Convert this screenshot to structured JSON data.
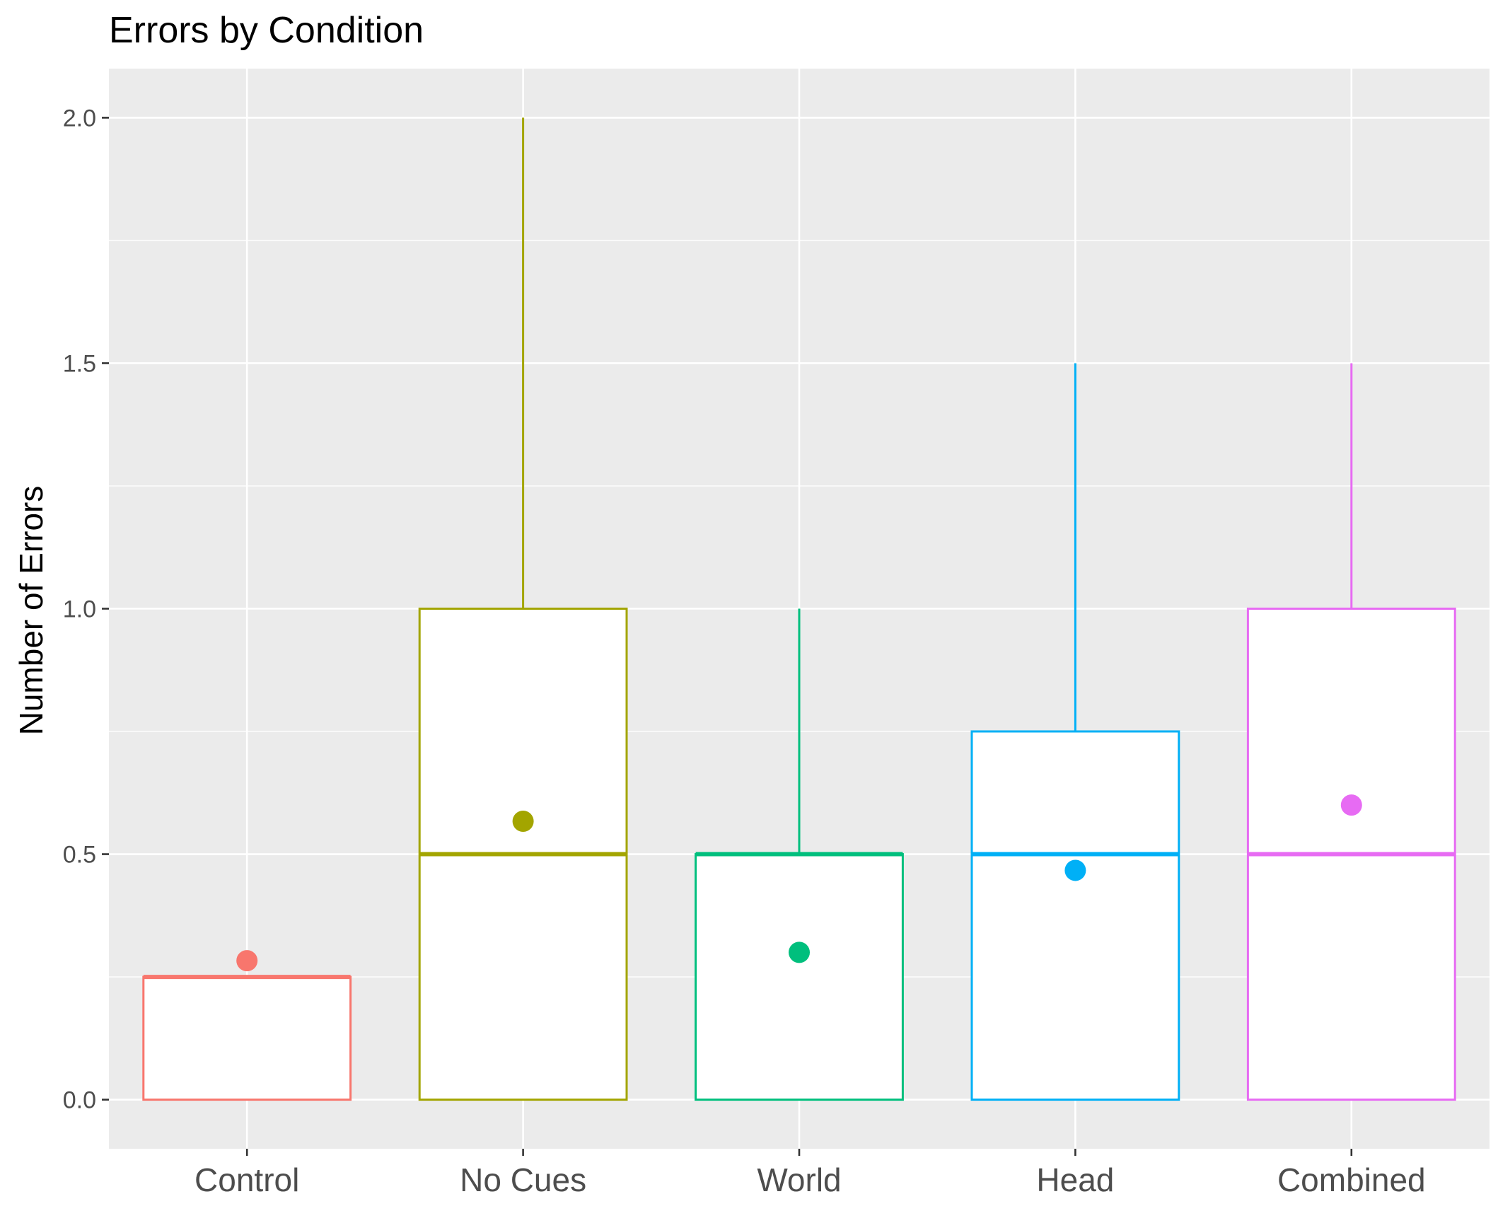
{
  "chart_data": {
    "type": "boxplot",
    "title": "Errors by Condition",
    "xlabel": "",
    "ylabel": "Number of Errors",
    "ylim": [
      -0.1,
      2.1
    ],
    "yticks": [
      0.0,
      0.5,
      1.0,
      1.5,
      2.0
    ],
    "ytick_labels": [
      "0.0",
      "0.5",
      "1.0",
      "1.5",
      "2.0"
    ],
    "grid": true,
    "legend": "none",
    "categories": [
      "Control",
      "No Cues",
      "World",
      "Head",
      "Combined"
    ],
    "series": [
      {
        "category": "Control",
        "color": "#F8766D",
        "min": 0,
        "q1": 0,
        "median": 0.25,
        "q3": 0.25,
        "max": 0.25,
        "mean": 0.283
      },
      {
        "category": "No Cues",
        "color": "#A3A500",
        "min": 0,
        "q1": 0,
        "median": 0.5,
        "q3": 1.0,
        "max": 2.0,
        "mean": 0.567
      },
      {
        "category": "World",
        "color": "#00BF7D",
        "min": 0,
        "q1": 0,
        "median": 0.5,
        "q3": 0.5,
        "max": 1.0,
        "mean": 0.3
      },
      {
        "category": "Head",
        "color": "#00B0F6",
        "min": 0,
        "q1": 0,
        "median": 0.5,
        "q3": 0.75,
        "max": 1.5,
        "mean": 0.467
      },
      {
        "category": "Combined",
        "color": "#E76BF3",
        "min": 0,
        "q1": 0,
        "median": 0.5,
        "q3": 1.0,
        "max": 1.5,
        "mean": 0.6
      }
    ]
  }
}
